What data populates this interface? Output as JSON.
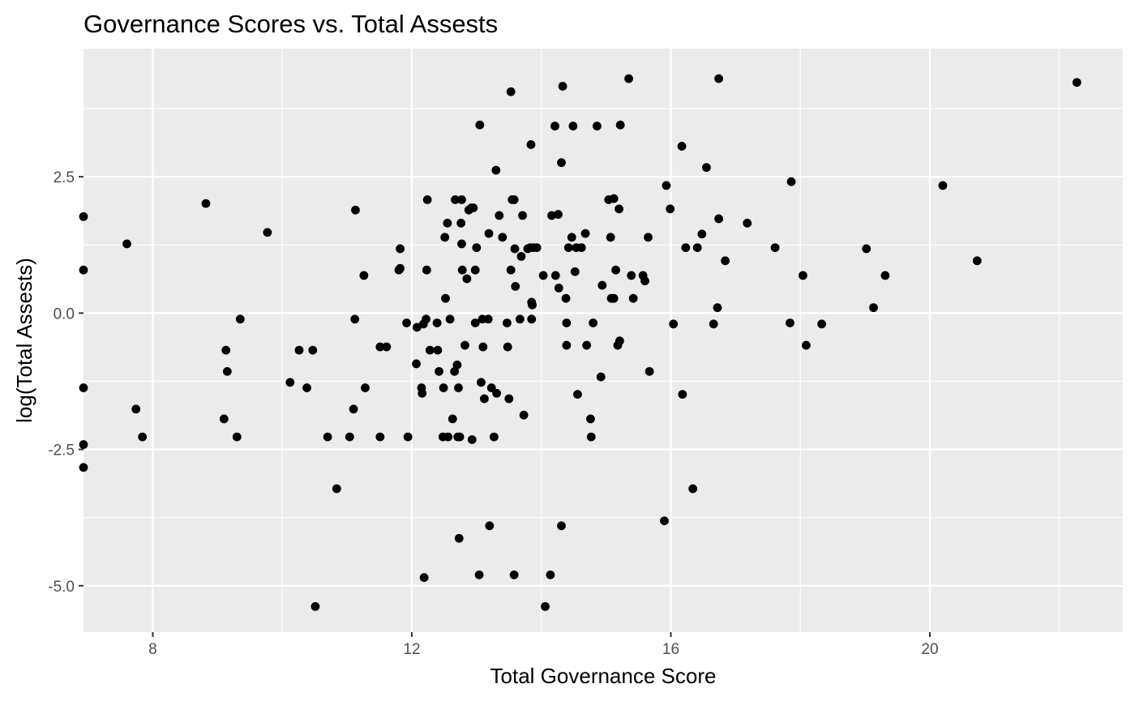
{
  "chart_data": {
    "type": "scatter",
    "title": "Governance Scores vs. Total Assests",
    "xlabel": "Total Governance Score",
    "ylabel": "log(Total Assests)",
    "xlim": [
      6.93,
      22.98
    ],
    "ylim": [
      -5.85,
      4.85
    ],
    "x_ticks": [
      8,
      12,
      16,
      20
    ],
    "x_tick_labels": [
      "8",
      "12",
      "16",
      "20"
    ],
    "x_minor": [
      10,
      14,
      18,
      22
    ],
    "y_ticks": [
      2.5,
      0.0,
      -2.5,
      -5.0
    ],
    "y_tick_labels": [
      "2.5",
      "0.0",
      "-2.5",
      "-5.0"
    ],
    "y_minor": [
      3.75,
      1.25,
      -1.25,
      -3.75
    ],
    "colors": {
      "panel": "#ebebeb",
      "grid": "#ffffff",
      "point": "#000000",
      "tick": "#333333"
    },
    "grid": true,
    "legend": "none",
    "points": [
      [
        6.93,
        1.77
      ],
      [
        6.93,
        0.79
      ],
      [
        6.93,
        -1.37
      ],
      [
        6.93,
        -2.41
      ],
      [
        6.93,
        -2.83
      ],
      [
        7.6,
        1.27
      ],
      [
        7.74,
        -1.76
      ],
      [
        7.84,
        -2.27
      ],
      [
        8.82,
        2.01
      ],
      [
        9.1,
        -1.94
      ],
      [
        9.13,
        -0.68
      ],
      [
        9.15,
        -1.07
      ],
      [
        9.3,
        -2.27
      ],
      [
        9.35,
        -0.11
      ],
      [
        9.77,
        1.48
      ],
      [
        10.12,
        -1.27
      ],
      [
        10.26,
        -0.68
      ],
      [
        10.38,
        -1.37
      ],
      [
        10.47,
        -0.68
      ],
      [
        10.51,
        -5.38
      ],
      [
        10.7,
        -2.27
      ],
      [
        10.84,
        -3.22
      ],
      [
        11.04,
        -2.27
      ],
      [
        11.1,
        -1.76
      ],
      [
        11.12,
        -0.11
      ],
      [
        11.13,
        1.89
      ],
      [
        11.26,
        0.69
      ],
      [
        11.28,
        -1.37
      ],
      [
        11.51,
        -0.62
      ],
      [
        11.51,
        -2.27
      ],
      [
        11.61,
        -0.62
      ],
      [
        11.8,
        0.79
      ],
      [
        11.82,
        0.82
      ],
      [
        11.82,
        1.18
      ],
      [
        11.92,
        -0.18
      ],
      [
        11.94,
        -2.27
      ],
      [
        12.07,
        -0.93
      ],
      [
        12.08,
        -0.26
      ],
      [
        12.15,
        -1.37
      ],
      [
        12.16,
        -1.47
      ],
      [
        12.18,
        -0.2
      ],
      [
        12.19,
        -4.85
      ],
      [
        12.22,
        -0.11
      ],
      [
        12.23,
        0.79
      ],
      [
        12.24,
        2.08
      ],
      [
        12.28,
        -0.68
      ],
      [
        12.39,
        -0.18
      ],
      [
        12.4,
        -0.68
      ],
      [
        12.42,
        -1.07
      ],
      [
        12.48,
        -2.27
      ],
      [
        12.49,
        -1.37
      ],
      [
        12.51,
        1.39
      ],
      [
        12.52,
        0.27
      ],
      [
        12.55,
        1.65
      ],
      [
        12.56,
        -2.27
      ],
      [
        12.59,
        -0.11
      ],
      [
        12.63,
        -1.94
      ],
      [
        12.66,
        -1.07
      ],
      [
        12.67,
        2.08
      ],
      [
        12.7,
        -0.95
      ],
      [
        12.71,
        -2.27
      ],
      [
        12.72,
        -1.37
      ],
      [
        12.73,
        -4.13
      ],
      [
        12.74,
        -2.27
      ],
      [
        12.76,
        1.65
      ],
      [
        12.77,
        2.08
      ],
      [
        12.77,
        1.27
      ],
      [
        12.78,
        0.79
      ],
      [
        12.82,
        -0.59
      ],
      [
        12.85,
        0.63
      ],
      [
        12.88,
        1.89
      ],
      [
        12.92,
        1.93
      ],
      [
        12.93,
        -2.32
      ],
      [
        12.95,
        1.93
      ],
      [
        12.98,
        0.79
      ],
      [
        12.98,
        -0.18
      ],
      [
        13.0,
        1.2
      ],
      [
        13.04,
        -4.8
      ],
      [
        13.05,
        3.45
      ],
      [
        13.07,
        -1.27
      ],
      [
        13.09,
        -0.11
      ],
      [
        13.1,
        -0.62
      ],
      [
        13.12,
        -1.57
      ],
      [
        13.18,
        -0.11
      ],
      [
        13.19,
        1.46
      ],
      [
        13.2,
        -3.9
      ],
      [
        13.23,
        -1.37
      ],
      [
        13.27,
        -2.27
      ],
      [
        13.3,
        2.62
      ],
      [
        13.31,
        -1.47
      ],
      [
        13.35,
        1.79
      ],
      [
        13.4,
        1.39
      ],
      [
        13.47,
        -0.18
      ],
      [
        13.48,
        -0.62
      ],
      [
        13.5,
        -1.57
      ],
      [
        13.53,
        4.06
      ],
      [
        13.53,
        0.79
      ],
      [
        13.55,
        2.08
      ],
      [
        13.58,
        2.08
      ],
      [
        13.58,
        -4.8
      ],
      [
        13.59,
        1.18
      ],
      [
        13.6,
        0.49
      ],
      [
        13.67,
        -0.11
      ],
      [
        13.69,
        1.04
      ],
      [
        13.71,
        1.79
      ],
      [
        13.73,
        -1.87
      ],
      [
        13.79,
        1.18
      ],
      [
        13.83,
        1.2
      ],
      [
        13.84,
        3.09
      ],
      [
        13.85,
        0.2
      ],
      [
        13.85,
        -0.11
      ],
      [
        13.86,
        0.15
      ],
      [
        13.88,
        1.2
      ],
      [
        13.93,
        1.2
      ],
      [
        14.03,
        0.69
      ],
      [
        14.06,
        -5.38
      ],
      [
        14.14,
        -4.8
      ],
      [
        14.16,
        1.79
      ],
      [
        14.21,
        3.43
      ],
      [
        14.22,
        0.69
      ],
      [
        14.26,
        1.81
      ],
      [
        14.27,
        0.46
      ],
      [
        14.31,
        2.76
      ],
      [
        14.31,
        -3.9
      ],
      [
        14.33,
        4.16
      ],
      [
        14.38,
        0.27
      ],
      [
        14.39,
        -0.18
      ],
      [
        14.39,
        -0.59
      ],
      [
        14.42,
        1.2
      ],
      [
        14.47,
        1.39
      ],
      [
        14.49,
        3.43
      ],
      [
        14.52,
        0.76
      ],
      [
        14.54,
        1.2
      ],
      [
        14.56,
        -1.49
      ],
      [
        14.62,
        1.2
      ],
      [
        14.68,
        1.46
      ],
      [
        14.7,
        -0.59
      ],
      [
        14.76,
        -1.94
      ],
      [
        14.77,
        -2.27
      ],
      [
        14.8,
        -0.18
      ],
      [
        14.86,
        3.43
      ],
      [
        14.92,
        -1.17
      ],
      [
        14.94,
        0.51
      ],
      [
        15.04,
        2.08
      ],
      [
        15.07,
        1.39
      ],
      [
        15.08,
        0.27
      ],
      [
        15.12,
        0.27
      ],
      [
        15.12,
        2.1
      ],
      [
        15.15,
        0.79
      ],
      [
        15.18,
        -0.59
      ],
      [
        15.2,
        1.91
      ],
      [
        15.21,
        -0.51
      ],
      [
        15.22,
        3.45
      ],
      [
        15.35,
        4.3
      ],
      [
        15.39,
        0.69
      ],
      [
        15.42,
        0.27
      ],
      [
        15.57,
        0.69
      ],
      [
        15.6,
        0.59
      ],
      [
        15.65,
        1.39
      ],
      [
        15.67,
        -1.07
      ],
      [
        15.9,
        -3.81
      ],
      [
        15.93,
        2.34
      ],
      [
        15.99,
        1.91
      ],
      [
        16.04,
        -0.2
      ],
      [
        16.17,
        3.06
      ],
      [
        16.18,
        -1.49
      ],
      [
        16.23,
        1.2
      ],
      [
        16.34,
        -3.22
      ],
      [
        16.41,
        1.2
      ],
      [
        16.48,
        1.45
      ],
      [
        16.55,
        2.67
      ],
      [
        16.66,
        -0.2
      ],
      [
        16.72,
        0.1
      ],
      [
        16.74,
        1.73
      ],
      [
        16.74,
        4.3
      ],
      [
        16.84,
        0.96
      ],
      [
        17.18,
        1.65
      ],
      [
        17.61,
        1.2
      ],
      [
        17.84,
        -0.18
      ],
      [
        17.86,
        2.41
      ],
      [
        18.04,
        0.69
      ],
      [
        18.09,
        -0.59
      ],
      [
        18.33,
        -0.2
      ],
      [
        19.02,
        1.18
      ],
      [
        19.13,
        0.1
      ],
      [
        19.31,
        0.69
      ],
      [
        20.2,
        2.34
      ],
      [
        20.73,
        0.96
      ],
      [
        22.27,
        4.23
      ]
    ]
  }
}
